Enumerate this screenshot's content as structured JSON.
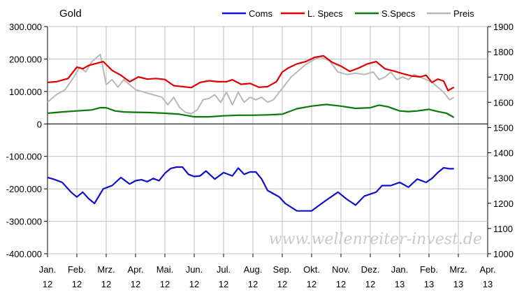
{
  "chart_data": {
    "type": "line",
    "title": "Gold",
    "watermark": "www.wellenreiter-invest.de",
    "x_labels": [
      [
        "Jan.",
        "12"
      ],
      [
        "Feb.",
        "12"
      ],
      [
        "Mrz.",
        "12"
      ],
      [
        "Apr.",
        "12"
      ],
      [
        "Mai.",
        "12"
      ],
      [
        "Jun.",
        "12"
      ],
      [
        "Jul.",
        "12"
      ],
      [
        "Aug.",
        "12"
      ],
      [
        "Sep.",
        "12"
      ],
      [
        "Okt.",
        "12"
      ],
      [
        "Nov.",
        "12"
      ],
      [
        "Dez.",
        "12"
      ],
      [
        "Jan.",
        "13"
      ],
      [
        "Feb.",
        "13"
      ],
      [
        "Mrz.",
        "13"
      ],
      [
        "Apr.",
        "13"
      ]
    ],
    "left_axis": {
      "ylim": [
        -400000,
        300000
      ],
      "ticks": [
        {
          "value": 300000,
          "label": "300.000"
        },
        {
          "value": 200000,
          "label": "200.000"
        },
        {
          "value": 100000,
          "label": "100.000"
        },
        {
          "value": 0,
          "label": "0"
        },
        {
          "value": -100000,
          "label": "-100.000"
        },
        {
          "value": -200000,
          "label": "-200.000"
        },
        {
          "value": -300000,
          "label": "-300.000"
        },
        {
          "value": -400000,
          "label": "-400.000"
        }
      ]
    },
    "right_axis": {
      "ylim": [
        1000,
        1900
      ],
      "ticks": [
        {
          "value": 1900,
          "label": "1900"
        },
        {
          "value": 1800,
          "label": "1800"
        },
        {
          "value": 1700,
          "label": "1700"
        },
        {
          "value": 1600,
          "label": "1600"
        },
        {
          "value": 1500,
          "label": "1500"
        },
        {
          "value": 1400,
          "label": "1400"
        },
        {
          "value": 1300,
          "label": "1300"
        },
        {
          "value": 1200,
          "label": "1200"
        },
        {
          "value": 1100,
          "label": "1100"
        },
        {
          "value": 1000,
          "label": "1000"
        }
      ]
    },
    "grid": true,
    "legend_position": "top-right",
    "series": [
      {
        "name": "Coms",
        "color": "#1010cc",
        "axis": "left",
        "x": [
          0,
          0.2,
          0.5,
          0.8,
          1.0,
          1.2,
          1.4,
          1.6,
          1.9,
          2.2,
          2.5,
          2.8,
          3.0,
          3.2,
          3.4,
          3.6,
          3.8,
          4.0,
          4.2,
          4.4,
          4.6,
          4.8,
          5.0,
          5.2,
          5.4,
          5.7,
          6.0,
          6.3,
          6.5,
          6.7,
          6.9,
          7.1,
          7.3,
          7.5,
          7.7,
          7.9,
          8.1,
          8.5,
          9.0,
          9.3,
          9.5,
          9.9,
          10.2,
          10.5,
          10.8,
          11.2,
          11.4,
          11.7,
          12.0,
          12.3,
          12.6,
          12.9,
          13.1,
          13.3,
          13.5,
          13.7,
          13.85
        ],
        "y": [
          -165000,
          -170000,
          -180000,
          -210000,
          -225000,
          -210000,
          -230000,
          -245000,
          -200000,
          -190000,
          -165000,
          -185000,
          -175000,
          -172000,
          -178000,
          -168000,
          -175000,
          -152000,
          -137000,
          -133000,
          -133000,
          -155000,
          -162000,
          -160000,
          -145000,
          -170000,
          -150000,
          -160000,
          -136000,
          -155000,
          -148000,
          -148000,
          -170000,
          -205000,
          -215000,
          -225000,
          -245000,
          -268000,
          -268000,
          -248000,
          -235000,
          -210000,
          -232000,
          -250000,
          -222000,
          -210000,
          -190000,
          -190000,
          -180000,
          -195000,
          -170000,
          -180000,
          -168000,
          -150000,
          -135000,
          -138000,
          -138000
        ]
      },
      {
        "name": "L. Specs",
        "color": "#dd0000",
        "axis": "left",
        "x": [
          0,
          0.3,
          0.7,
          1.0,
          1.2,
          1.4,
          1.6,
          1.9,
          2.2,
          2.5,
          2.8,
          3.1,
          3.4,
          3.7,
          4.0,
          4.3,
          4.6,
          4.9,
          5.2,
          5.5,
          5.8,
          6.1,
          6.3,
          6.6,
          6.9,
          7.2,
          7.5,
          7.8,
          8.0,
          8.2,
          8.5,
          8.8,
          9.1,
          9.4,
          9.7,
          10.0,
          10.3,
          10.6,
          10.9,
          11.2,
          11.5,
          11.8,
          12.1,
          12.4,
          12.7,
          12.9,
          13.1,
          13.3,
          13.5,
          13.65,
          13.85
        ],
        "y": [
          128000,
          130000,
          140000,
          175000,
          170000,
          180000,
          185000,
          192000,
          165000,
          150000,
          130000,
          145000,
          138000,
          140000,
          137000,
          118000,
          115000,
          112000,
          128000,
          133000,
          130000,
          130000,
          136000,
          122000,
          125000,
          113000,
          115000,
          130000,
          160000,
          172000,
          185000,
          192000,
          205000,
          210000,
          190000,
          178000,
          162000,
          172000,
          185000,
          192000,
          170000,
          163000,
          155000,
          148000,
          145000,
          150000,
          128000,
          138000,
          132000,
          103000,
          113000
        ]
      },
      {
        "name": "S.Specs",
        "color": "#0b7a0b",
        "axis": "left",
        "x": [
          0,
          0.5,
          1.0,
          1.5,
          1.8,
          2.0,
          2.3,
          2.6,
          3.0,
          3.5,
          4.0,
          4.5,
          5.0,
          5.5,
          6.0,
          6.5,
          7.0,
          7.5,
          8.0,
          8.5,
          9.0,
          9.5,
          10.0,
          10.5,
          11.0,
          11.3,
          11.6,
          12.0,
          12.3,
          12.6,
          13.0,
          13.3,
          13.6,
          13.85
        ],
        "y": [
          33000,
          37000,
          40000,
          43000,
          50000,
          50000,
          40000,
          37000,
          36000,
          35000,
          33000,
          30000,
          22000,
          22000,
          25000,
          27000,
          27000,
          28000,
          30000,
          47000,
          55000,
          60000,
          55000,
          48000,
          50000,
          58000,
          53000,
          40000,
          38000,
          40000,
          45000,
          38000,
          33000,
          20000
        ]
      },
      {
        "name": "Preis",
        "color": "#b8b8b8",
        "axis": "right",
        "x": [
          0,
          0.3,
          0.6,
          0.9,
          1.1,
          1.3,
          1.5,
          1.8,
          2.0,
          2.2,
          2.4,
          2.6,
          2.8,
          3.0,
          3.3,
          3.6,
          3.9,
          4.1,
          4.3,
          4.5,
          4.7,
          4.9,
          5.1,
          5.3,
          5.5,
          5.7,
          5.9,
          6.1,
          6.3,
          6.5,
          6.7,
          6.9,
          7.1,
          7.3,
          7.5,
          7.7,
          7.9,
          8.1,
          8.3,
          8.5,
          8.8,
          9.1,
          9.3,
          9.6,
          9.9,
          10.2,
          10.5,
          10.8,
          11.1,
          11.3,
          11.5,
          11.7,
          11.9,
          12.1,
          12.3,
          12.5,
          12.7,
          12.9,
          13.1,
          13.3,
          13.5,
          13.7,
          13.85
        ],
        "y": [
          1600,
          1630,
          1650,
          1700,
          1740,
          1720,
          1760,
          1790,
          1670,
          1690,
          1660,
          1690,
          1670,
          1650,
          1640,
          1630,
          1620,
          1590,
          1620,
          1580,
          1560,
          1555,
          1570,
          1610,
          1615,
          1630,
          1600,
          1640,
          1590,
          1640,
          1600,
          1620,
          1610,
          1620,
          1600,
          1610,
          1640,
          1670,
          1700,
          1720,
          1750,
          1770,
          1780,
          1765,
          1720,
          1710,
          1715,
          1710,
          1720,
          1690,
          1700,
          1720,
          1690,
          1700,
          1690,
          1710,
          1700,
          1690,
          1680,
          1660,
          1640,
          1610,
          1620
        ]
      }
    ]
  }
}
